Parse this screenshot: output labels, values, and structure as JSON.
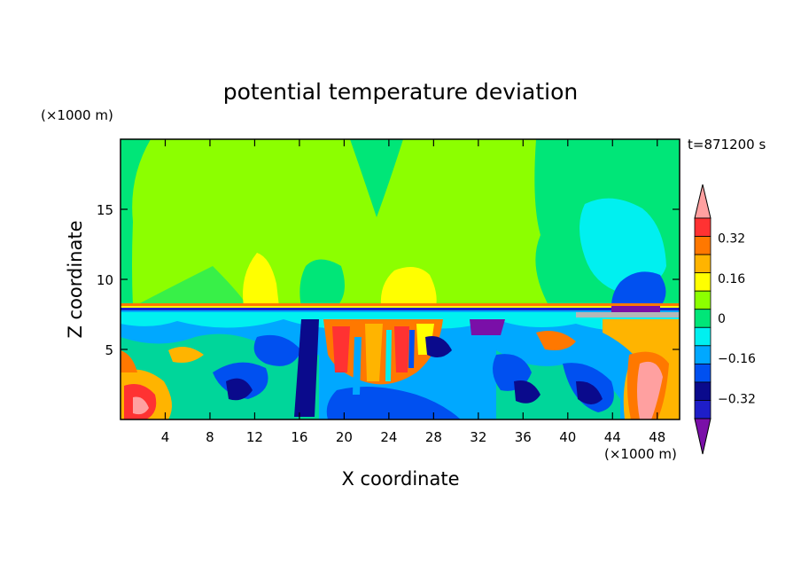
{
  "chart_data": {
    "type": "heatmap",
    "title": "potential temperature deviation",
    "xlabel": "X coordinate",
    "ylabel": "Z coordinate",
    "x_unit": "(×1000 m)",
    "y_unit": "(×1000 m)",
    "time_label": "t=871200 s",
    "xlim": [
      0,
      50
    ],
    "ylim": [
      0,
      20
    ],
    "x_ticks": [
      4,
      8,
      12,
      16,
      20,
      24,
      28,
      32,
      36,
      40,
      44,
      48
    ],
    "y_ticks": [
      5,
      10,
      15
    ],
    "colorbar": {
      "levels": [
        -0.48,
        -0.4,
        -0.32,
        -0.24,
        -0.16,
        -0.08,
        0,
        0.08,
        0.16,
        0.24,
        0.32,
        0.4,
        0.48
      ],
      "colors": [
        "#7a0fa8",
        "#1e1ec8",
        "#0a0a8c",
        "#0050f0",
        "#00a8ff",
        "#00f0f0",
        "#00e678",
        "#8cff00",
        "#ffff00",
        "#ffb400",
        "#ff7800",
        "#ff3232",
        "#ffa0a0"
      ],
      "labels": [
        "0.32",
        "0.16",
        "0",
        "−0.16",
        "−0.32"
      ],
      "label_values": [
        0.32,
        0.16,
        0,
        -0.16,
        -0.32
      ]
    }
  }
}
